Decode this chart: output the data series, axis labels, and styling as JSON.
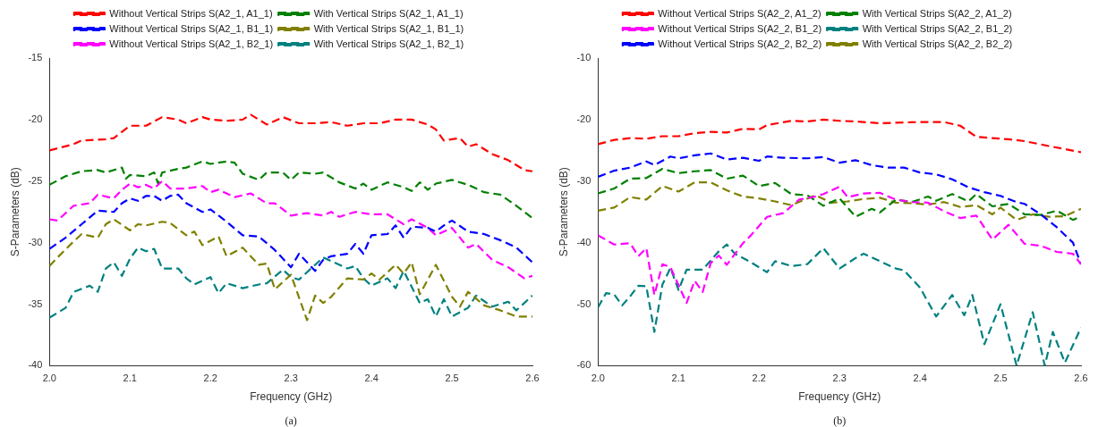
{
  "chart_data": [
    {
      "type": "line",
      "xlabel": "Frequency (GHz)",
      "ylabel": "S-Parameters (dB)",
      "annotations": [
        "(a)"
      ],
      "legend": "top",
      "grid": false,
      "marker": "none",
      "line_style": "dashed",
      "xlim": [
        2.0,
        2.6
      ],
      "xticks": [
        {
          "value": 2.0,
          "label": "2.0"
        },
        2.1,
        2.2,
        2.3,
        2.4,
        2.5,
        2.6
      ],
      "ylim": [
        -40,
        -15
      ],
      "yticks": [
        -40,
        -35,
        -30,
        -25,
        -20,
        -15
      ],
      "series": [
        {
          "name": "Without Vertical Strips S(A2_1, A1_1)",
          "color": "#ff0000",
          "x": [
            2.0,
            2.03,
            2.04,
            2.07,
            2.08,
            2.1,
            2.12,
            2.14,
            2.16,
            2.17,
            2.19,
            2.2,
            2.22,
            2.24,
            2.25,
            2.27,
            2.29,
            2.31,
            2.33,
            2.35,
            2.37,
            2.39,
            2.41,
            2.43,
            2.45,
            2.47,
            2.48,
            2.49,
            2.51,
            2.52,
            2.53,
            2.55,
            2.57,
            2.59,
            2.6
          ],
          "values": [
            -22.5,
            -22,
            -21.7,
            -21.6,
            -21.5,
            -20.5,
            -20.5,
            -19.8,
            -20,
            -20.3,
            -19.8,
            -20,
            -20.1,
            -20,
            -19.6,
            -20.4,
            -19.8,
            -20.3,
            -20.3,
            -20.2,
            -20.5,
            -20.3,
            -20.3,
            -20,
            -20,
            -20.4,
            -20.8,
            -21.7,
            -21.5,
            -22.2,
            -22,
            -22.8,
            -23.3,
            -24.1,
            -24.2
          ]
        },
        {
          "name": "Without Vertical Strips S(A2_1, B1_1)",
          "color": "#0000ff",
          "x": [
            2.0,
            2.02,
            2.04,
            2.06,
            2.08,
            2.09,
            2.1,
            2.11,
            2.12,
            2.13,
            2.14,
            2.15,
            2.16,
            2.17,
            2.19,
            2.2,
            2.22,
            2.24,
            2.26,
            2.28,
            2.3,
            2.31,
            2.33,
            2.34,
            2.35,
            2.37,
            2.38,
            2.39,
            2.4,
            2.42,
            2.43,
            2.44,
            2.45,
            2.47,
            2.48,
            2.49,
            2.5,
            2.52,
            2.54,
            2.56,
            2.58,
            2.6
          ],
          "values": [
            -30.5,
            -29.6,
            -28.5,
            -27.4,
            -27.5,
            -26.8,
            -26.4,
            -26.6,
            -26.2,
            -26.2,
            -26.6,
            -26.2,
            -26.1,
            -26.8,
            -27.5,
            -27.3,
            -28.3,
            -29.4,
            -29.5,
            -30.6,
            -32,
            -30.9,
            -32.3,
            -31.4,
            -31.1,
            -30.9,
            -30.1,
            -30.9,
            -29.4,
            -29.3,
            -28.6,
            -29.6,
            -28.7,
            -28.8,
            -29.1,
            -28.6,
            -28.2,
            -29.1,
            -29.3,
            -29.8,
            -30.4,
            -31.6
          ]
        },
        {
          "name": "Without Vertical Strips S(A2_1, B2_1)",
          "color": "#ff00ff",
          "x": [
            2.0,
            2.01,
            2.03,
            2.05,
            2.06,
            2.08,
            2.09,
            2.1,
            2.11,
            2.12,
            2.13,
            2.14,
            2.15,
            2.17,
            2.19,
            2.2,
            2.21,
            2.23,
            2.25,
            2.27,
            2.28,
            2.3,
            2.32,
            2.34,
            2.35,
            2.36,
            2.38,
            2.4,
            2.42,
            2.44,
            2.45,
            2.47,
            2.48,
            2.5,
            2.52,
            2.53,
            2.55,
            2.57,
            2.59,
            2.6
          ],
          "values": [
            -28.1,
            -28.2,
            -27,
            -26.8,
            -26.1,
            -26.4,
            -25.7,
            -25.2,
            -25.5,
            -25.3,
            -25.6,
            -25,
            -25.6,
            -25.6,
            -25.4,
            -25.9,
            -25.7,
            -26.3,
            -26,
            -26.8,
            -26.8,
            -27.8,
            -27.6,
            -27.8,
            -27.5,
            -27.9,
            -27.5,
            -27.7,
            -27.7,
            -28.5,
            -28.1,
            -28.8,
            -29.4,
            -28.8,
            -30.4,
            -30.1,
            -31.4,
            -32,
            -32.9,
            -32.7
          ]
        },
        {
          "name": "With Vertical Strips S(A2_1, A1_1)",
          "color": "#008000",
          "x": [
            2.0,
            2.02,
            2.04,
            2.06,
            2.07,
            2.09,
            2.095,
            2.1,
            2.12,
            2.13,
            2.135,
            2.14,
            2.16,
            2.17,
            2.19,
            2.2,
            2.22,
            2.23,
            2.24,
            2.26,
            2.27,
            2.29,
            2.3,
            2.31,
            2.33,
            2.34,
            2.36,
            2.38,
            2.39,
            2.4,
            2.42,
            2.44,
            2.45,
            2.46,
            2.47,
            2.48,
            2.5,
            2.52,
            2.54,
            2.56,
            2.58,
            2.6
          ],
          "values": [
            -25.3,
            -24.6,
            -24.2,
            -24.1,
            -24.3,
            -23.9,
            -24.8,
            -24.5,
            -24.6,
            -24.3,
            -25.2,
            -24.3,
            -24,
            -23.9,
            -23.4,
            -23.6,
            -23.4,
            -23.5,
            -24.4,
            -24.9,
            -24.3,
            -24.3,
            -24.9,
            -24.3,
            -24.4,
            -24.3,
            -25.1,
            -25.6,
            -25.2,
            -25.7,
            -25.1,
            -25.5,
            -25.8,
            -25.1,
            -25.7,
            -25.2,
            -24.9,
            -25.3,
            -25.9,
            -26.1,
            -27,
            -28
          ]
        },
        {
          "name": "With Vertical Strips S(A2_1, B1_1)",
          "color": "#808000",
          "x": [
            2.0,
            2.01,
            2.03,
            2.04,
            2.06,
            2.07,
            2.08,
            2.1,
            2.11,
            2.12,
            2.14,
            2.15,
            2.17,
            2.18,
            2.19,
            2.21,
            2.22,
            2.24,
            2.26,
            2.27,
            2.28,
            2.3,
            2.32,
            2.33,
            2.34,
            2.35,
            2.37,
            2.39,
            2.4,
            2.41,
            2.43,
            2.44,
            2.45,
            2.46,
            2.48,
            2.5,
            2.51,
            2.52,
            2.54,
            2.56,
            2.58,
            2.6
          ],
          "values": [
            -31.9,
            -31.2,
            -29.9,
            -29.3,
            -29.6,
            -28.5,
            -28.1,
            -29,
            -28.5,
            -28.6,
            -28.3,
            -28.4,
            -29.4,
            -29.1,
            -30.2,
            -29.5,
            -31.1,
            -30.4,
            -31.8,
            -31.7,
            -33.8,
            -32.6,
            -36.3,
            -34.3,
            -34.9,
            -34.4,
            -32.9,
            -33,
            -32.5,
            -33,
            -31.8,
            -32.5,
            -31.6,
            -34.2,
            -31.8,
            -34.4,
            -35.2,
            -34,
            -35.1,
            -35.5,
            -36,
            -36
          ]
        },
        {
          "name": "With Vertical Strips S(A2_1, B2_1)",
          "color": "#008080",
          "x": [
            2.0,
            2.02,
            2.03,
            2.05,
            2.06,
            2.07,
            2.08,
            2.09,
            2.1,
            2.11,
            2.12,
            2.13,
            2.14,
            2.16,
            2.17,
            2.18,
            2.2,
            2.21,
            2.22,
            2.24,
            2.26,
            2.27,
            2.29,
            2.3,
            2.31,
            2.33,
            2.34,
            2.35,
            2.37,
            2.38,
            2.39,
            2.4,
            2.42,
            2.43,
            2.44,
            2.46,
            2.47,
            2.48,
            2.49,
            2.5,
            2.52,
            2.53,
            2.55,
            2.57,
            2.58,
            2.6
          ],
          "values": [
            -36.1,
            -35.3,
            -34,
            -33.5,
            -34,
            -32.1,
            -31.6,
            -32.7,
            -31.3,
            -30.4,
            -30.7,
            -30.5,
            -32.1,
            -32.1,
            -32.9,
            -33.4,
            -32.8,
            -34.1,
            -33.3,
            -33.7,
            -33.4,
            -33.3,
            -32.2,
            -32.8,
            -33,
            -31.8,
            -31.2,
            -31.5,
            -32.1,
            -31.9,
            -32.9,
            -33.5,
            -32.9,
            -33.7,
            -32.3,
            -34.9,
            -34.6,
            -36,
            -34.6,
            -36,
            -35.3,
            -34.3,
            -35.2,
            -34.8,
            -35.5,
            -34.3
          ]
        }
      ]
    },
    {
      "type": "line",
      "xlabel": "Frequency (GHz)",
      "ylabel": "S-Parameters (dB)",
      "annotations": [
        "(b)"
      ],
      "legend": "top",
      "grid": false,
      "marker": "none",
      "line_style": "dashed",
      "xlim": [
        2.0,
        2.6
      ],
      "xticks": [
        {
          "value": 2.0,
          "label": "2.0"
        },
        2.1,
        2.2,
        2.3,
        2.4,
        2.5,
        2.6
      ],
      "ylim": [
        -60,
        -10
      ],
      "yticks": [
        -60,
        -50,
        -40,
        -30,
        -20,
        -10
      ],
      "series": [
        {
          "name": "Without Vertical Strips S(A2_2, A1_2)",
          "color": "#ff0000",
          "x": [
            2.0,
            2.02,
            2.04,
            2.06,
            2.08,
            2.1,
            2.12,
            2.14,
            2.16,
            2.18,
            2.2,
            2.21,
            2.24,
            2.26,
            2.28,
            2.3,
            2.32,
            2.35,
            2.37,
            2.4,
            2.43,
            2.45,
            2.47,
            2.49,
            2.51,
            2.53,
            2.56,
            2.6
          ],
          "values": [
            -24,
            -23.3,
            -23,
            -23.1,
            -22.7,
            -22.7,
            -22.2,
            -22,
            -22.1,
            -21.5,
            -21.6,
            -20.9,
            -20.2,
            -20.3,
            -20,
            -20.2,
            -20.3,
            -20.6,
            -20.5,
            -20.4,
            -20.4,
            -21,
            -22.8,
            -23,
            -23.2,
            -23.5,
            -24.3,
            -25.3
          ]
        },
        {
          "name": "Without Vertical Strips S(A2_2, B1_2)",
          "color": "#ff00ff",
          "x": [
            2.0,
            2.02,
            2.04,
            2.05,
            2.06,
            2.07,
            2.08,
            2.09,
            2.11,
            2.12,
            2.13,
            2.14,
            2.15,
            2.16,
            2.18,
            2.19,
            2.21,
            2.23,
            2.25,
            2.27,
            2.28,
            2.3,
            2.31,
            2.33,
            2.35,
            2.37,
            2.39,
            2.41,
            2.43,
            2.45,
            2.47,
            2.49,
            2.51,
            2.53,
            2.55,
            2.57,
            2.59,
            2.6
          ],
          "values": [
            -38.8,
            -40.3,
            -40.1,
            -42.2,
            -40.9,
            -48.5,
            -43.5,
            -44,
            -49.8,
            -46.2,
            -48,
            -43.3,
            -42.1,
            -43.6,
            -40.1,
            -38.8,
            -35.8,
            -35.2,
            -33,
            -32.5,
            -32.1,
            -30.9,
            -32.6,
            -32,
            -31.9,
            -33,
            -33.4,
            -33.5,
            -34.9,
            -36,
            -35.6,
            -39.5,
            -37.1,
            -40.2,
            -40.5,
            -41.5,
            -41.8,
            -43.5
          ]
        },
        {
          "name": "Without Vertical Strips S(A2_2, B2_2)",
          "color": "#0000ff",
          "x": [
            2.0,
            2.02,
            2.04,
            2.06,
            2.07,
            2.09,
            2.1,
            2.12,
            2.14,
            2.16,
            2.18,
            2.2,
            2.21,
            2.23,
            2.26,
            2.28,
            2.3,
            2.32,
            2.34,
            2.36,
            2.38,
            2.4,
            2.42,
            2.44,
            2.46,
            2.48,
            2.5,
            2.52,
            2.53,
            2.55,
            2.57,
            2.59,
            2.6
          ],
          "values": [
            -29.3,
            -28.3,
            -27.8,
            -26.8,
            -27.4,
            -26,
            -26.3,
            -25.8,
            -25.5,
            -26.5,
            -26.2,
            -26.7,
            -26,
            -26.2,
            -26.3,
            -26.1,
            -27,
            -26.6,
            -27.4,
            -27.8,
            -27.8,
            -28.6,
            -28.9,
            -29.7,
            -31,
            -31.8,
            -32.4,
            -33.4,
            -33.7,
            -35.4,
            -37.5,
            -40,
            -43.5
          ]
        },
        {
          "name": "With Vertical Strips S(A2_2, A1_2)",
          "color": "#008000",
          "x": [
            2.0,
            2.02,
            2.04,
            2.06,
            2.08,
            2.1,
            2.12,
            2.14,
            2.16,
            2.18,
            2.2,
            2.22,
            2.24,
            2.26,
            2.28,
            2.3,
            2.32,
            2.34,
            2.35,
            2.37,
            2.39,
            2.41,
            2.42,
            2.44,
            2.46,
            2.47,
            2.49,
            2.51,
            2.53,
            2.55,
            2.57,
            2.59,
            2.6
          ],
          "values": [
            -32,
            -31.2,
            -29.6,
            -29.5,
            -28,
            -28.7,
            -28.4,
            -28.2,
            -29.6,
            -29.1,
            -30.8,
            -30.3,
            -32.1,
            -32.3,
            -34,
            -32.8,
            -35.8,
            -34.5,
            -35.1,
            -33,
            -33.4,
            -32.5,
            -33.2,
            -32.1,
            -33.3,
            -32.1,
            -34.1,
            -33.7,
            -35.4,
            -35.5,
            -34.8,
            -36.3,
            -35.7
          ]
        },
        {
          "name": "With Vertical Strips S(A2_2, B1_2)",
          "color": "#008080",
          "x": [
            2.0,
            2.01,
            2.02,
            2.03,
            2.04,
            2.05,
            2.06,
            2.07,
            2.08,
            2.09,
            2.1,
            2.11,
            2.13,
            2.15,
            2.16,
            2.17,
            2.19,
            2.21,
            2.22,
            2.24,
            2.26,
            2.28,
            2.3,
            2.32,
            2.33,
            2.35,
            2.37,
            2.38,
            2.4,
            2.42,
            2.44,
            2.455,
            2.465,
            2.48,
            2.5,
            2.52,
            2.54,
            2.555,
            2.565,
            2.58,
            2.6
          ],
          "values": [
            -50.5,
            -48.2,
            -48.4,
            -50.2,
            -48.7,
            -47,
            -47.1,
            -54.5,
            -46.8,
            -44.1,
            -47.7,
            -44.4,
            -44.4,
            -41.4,
            -40.3,
            -41.8,
            -43.2,
            -44.8,
            -43,
            -43.8,
            -43.5,
            -40.9,
            -44.2,
            -42.5,
            -41.8,
            -43,
            -44.2,
            -44.5,
            -47.3,
            -52,
            -48.5,
            -51.8,
            -48.5,
            -56.5,
            -50,
            -60,
            -51.3,
            -60,
            -54.5,
            -59.5,
            -53.8
          ]
        },
        {
          "name": "With Vertical Strips S(A2_2, B2_2)",
          "color": "#808000",
          "x": [
            2.0,
            2.02,
            2.04,
            2.06,
            2.08,
            2.1,
            2.12,
            2.14,
            2.16,
            2.18,
            2.2,
            2.22,
            2.24,
            2.27,
            2.29,
            2.31,
            2.33,
            2.35,
            2.37,
            2.39,
            2.41,
            2.43,
            2.45,
            2.47,
            2.49,
            2.5,
            2.52,
            2.54,
            2.56,
            2.58,
            2.6
          ],
          "values": [
            -34.8,
            -34.3,
            -32.6,
            -33,
            -30.8,
            -31.7,
            -30.2,
            -30.2,
            -31.5,
            -32.5,
            -32.8,
            -33.3,
            -33.9,
            -32.3,
            -33.5,
            -33.3,
            -32.9,
            -32.7,
            -33.5,
            -33.6,
            -33.8,
            -33.4,
            -34.2,
            -33.9,
            -35.4,
            -34.3,
            -36.3,
            -35.4,
            -35.8,
            -35.7,
            -34.5
          ]
        }
      ]
    }
  ]
}
